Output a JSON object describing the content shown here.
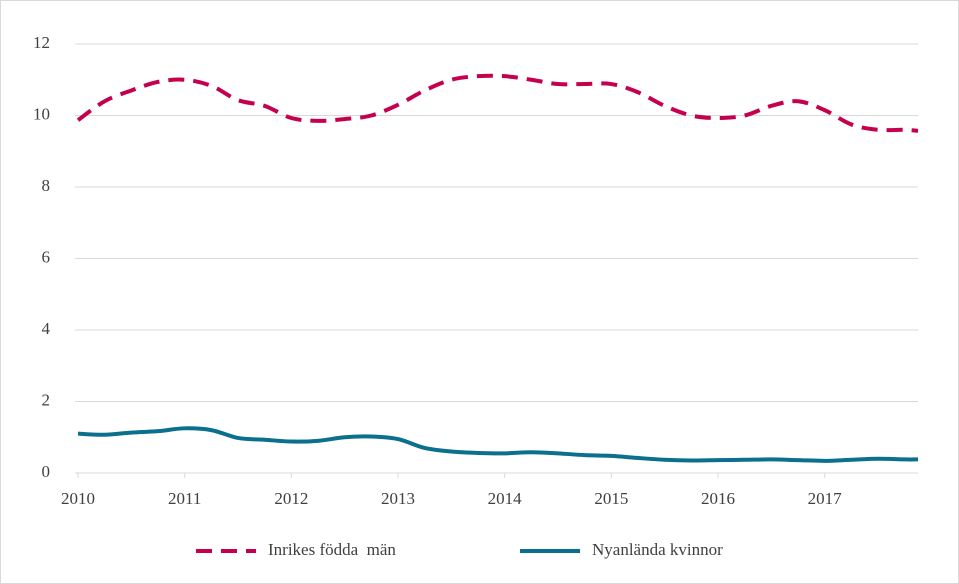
{
  "chart_data": {
    "type": "line",
    "x": [
      2010,
      2010.25,
      2010.5,
      2010.75,
      2011,
      2011.25,
      2011.5,
      2011.75,
      2012,
      2012.25,
      2012.5,
      2012.75,
      2013,
      2013.25,
      2013.5,
      2013.75,
      2014,
      2014.25,
      2014.5,
      2014.75,
      2015,
      2015.25,
      2015.5,
      2015.75,
      2016,
      2016.25,
      2016.5,
      2016.75,
      2017,
      2017.25,
      2017.5,
      2017.75,
      2017.875
    ],
    "series": [
      {
        "name": "Inrikes födda  män",
        "color": "#c4004f",
        "dash": true,
        "values": [
          9.87,
          10.4,
          10.7,
          10.94,
          11.0,
          10.83,
          10.43,
          10.27,
          9.93,
          9.85,
          9.9,
          10.0,
          10.3,
          10.7,
          11.0,
          11.1,
          11.1,
          11.0,
          10.88,
          10.88,
          10.88,
          10.65,
          10.27,
          10.0,
          9.93,
          10.0,
          10.27,
          10.4,
          10.15,
          9.75,
          9.6,
          9.6,
          9.57
        ]
      },
      {
        "name": "Nyanlända kvinnor",
        "color": "#0b6f8e",
        "dash": false,
        "values": [
          1.1,
          1.07,
          1.13,
          1.17,
          1.25,
          1.2,
          0.98,
          0.93,
          0.88,
          0.9,
          1.0,
          1.02,
          0.95,
          0.7,
          0.6,
          0.56,
          0.55,
          0.58,
          0.55,
          0.5,
          0.48,
          0.42,
          0.37,
          0.35,
          0.36,
          0.37,
          0.38,
          0.36,
          0.34,
          0.37,
          0.4,
          0.38,
          0.38
        ]
      }
    ],
    "xlim": [
      2010,
      2017.875
    ],
    "xticks": [
      2010,
      2011,
      2012,
      2013,
      2014,
      2015,
      2016,
      2017
    ],
    "ylim": [
      0,
      12
    ],
    "yticks": [
      0,
      2,
      4,
      6,
      8,
      10,
      12
    ],
    "grid": true,
    "legend": "bottom"
  }
}
